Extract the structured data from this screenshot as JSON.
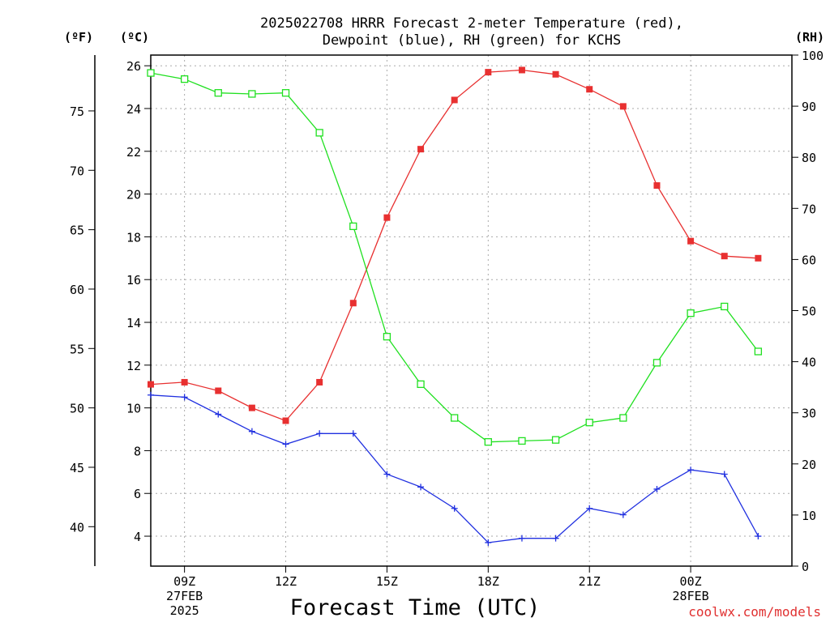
{
  "chart_data": {
    "type": "line",
    "title_line1": "2025022708 HRRR Forecast 2-meter Temperature (red),",
    "title_line2": "Dewpoint (blue), RH (green) for KCHS",
    "xlabel": "Forecast Time (UTC)",
    "credit": "coolwx.com/models",
    "units": {
      "f": "(ºF)",
      "c": "(ºC)",
      "rh": "(RH)"
    },
    "x_hours": [
      8,
      9,
      10,
      11,
      12,
      13,
      14,
      15,
      16,
      17,
      18,
      19,
      20,
      21,
      22,
      23,
      24,
      25,
      26
    ],
    "xlim": [
      8,
      27
    ],
    "x_ticks": [
      {
        "hour": 9,
        "label": "09Z",
        "sub1": "27FEB",
        "sub2": "2025"
      },
      {
        "hour": 12,
        "label": "12Z",
        "sub1": "",
        "sub2": ""
      },
      {
        "hour": 15,
        "label": "15Z",
        "sub1": "",
        "sub2": ""
      },
      {
        "hour": 18,
        "label": "18Z",
        "sub1": "",
        "sub2": ""
      },
      {
        "hour": 21,
        "label": "21Z",
        "sub1": "",
        "sub2": ""
      },
      {
        "hour": 24,
        "label": "00Z",
        "sub1": "28FEB",
        "sub2": ""
      }
    ],
    "ylim_c": [
      2.6,
      26.5
    ],
    "y_ticks_c": [
      4,
      6,
      8,
      10,
      12,
      14,
      16,
      18,
      20,
      22,
      24,
      26
    ],
    "y_ticks_f": [
      40,
      45,
      50,
      55,
      60,
      65,
      70,
      75
    ],
    "ylim_rh": [
      0,
      100
    ],
    "y_ticks_rh": [
      0,
      10,
      20,
      30,
      40,
      50,
      60,
      70,
      80,
      90,
      100
    ],
    "grid": true,
    "series": [
      {
        "name": "Temperature",
        "axis": "c",
        "color": "#e83030",
        "marker": "filled-square",
        "values": [
          11.1,
          11.2,
          10.8,
          10.0,
          9.4,
          11.2,
          14.9,
          18.9,
          22.1,
          24.4,
          25.7,
          25.8,
          25.6,
          24.9,
          24.1,
          20.4,
          17.8,
          17.1,
          17.0
        ]
      },
      {
        "name": "Dewpoint",
        "axis": "c",
        "color": "#2030e0",
        "marker": "plus",
        "values": [
          10.6,
          10.5,
          9.7,
          8.9,
          8.3,
          8.8,
          8.8,
          6.9,
          6.3,
          5.3,
          3.7,
          3.9,
          3.9,
          5.3,
          5.0,
          6.2,
          7.1,
          6.9,
          4.0
        ]
      },
      {
        "name": "RH",
        "axis": "rh",
        "color": "#20e020",
        "marker": "open-square",
        "values": [
          96.5,
          95.3,
          92.6,
          92.4,
          92.6,
          84.8,
          66.5,
          44.9,
          35.6,
          29.0,
          24.3,
          24.5,
          24.7,
          28.1,
          29.0,
          39.8,
          49.5,
          50.8,
          42.0
        ]
      }
    ]
  }
}
